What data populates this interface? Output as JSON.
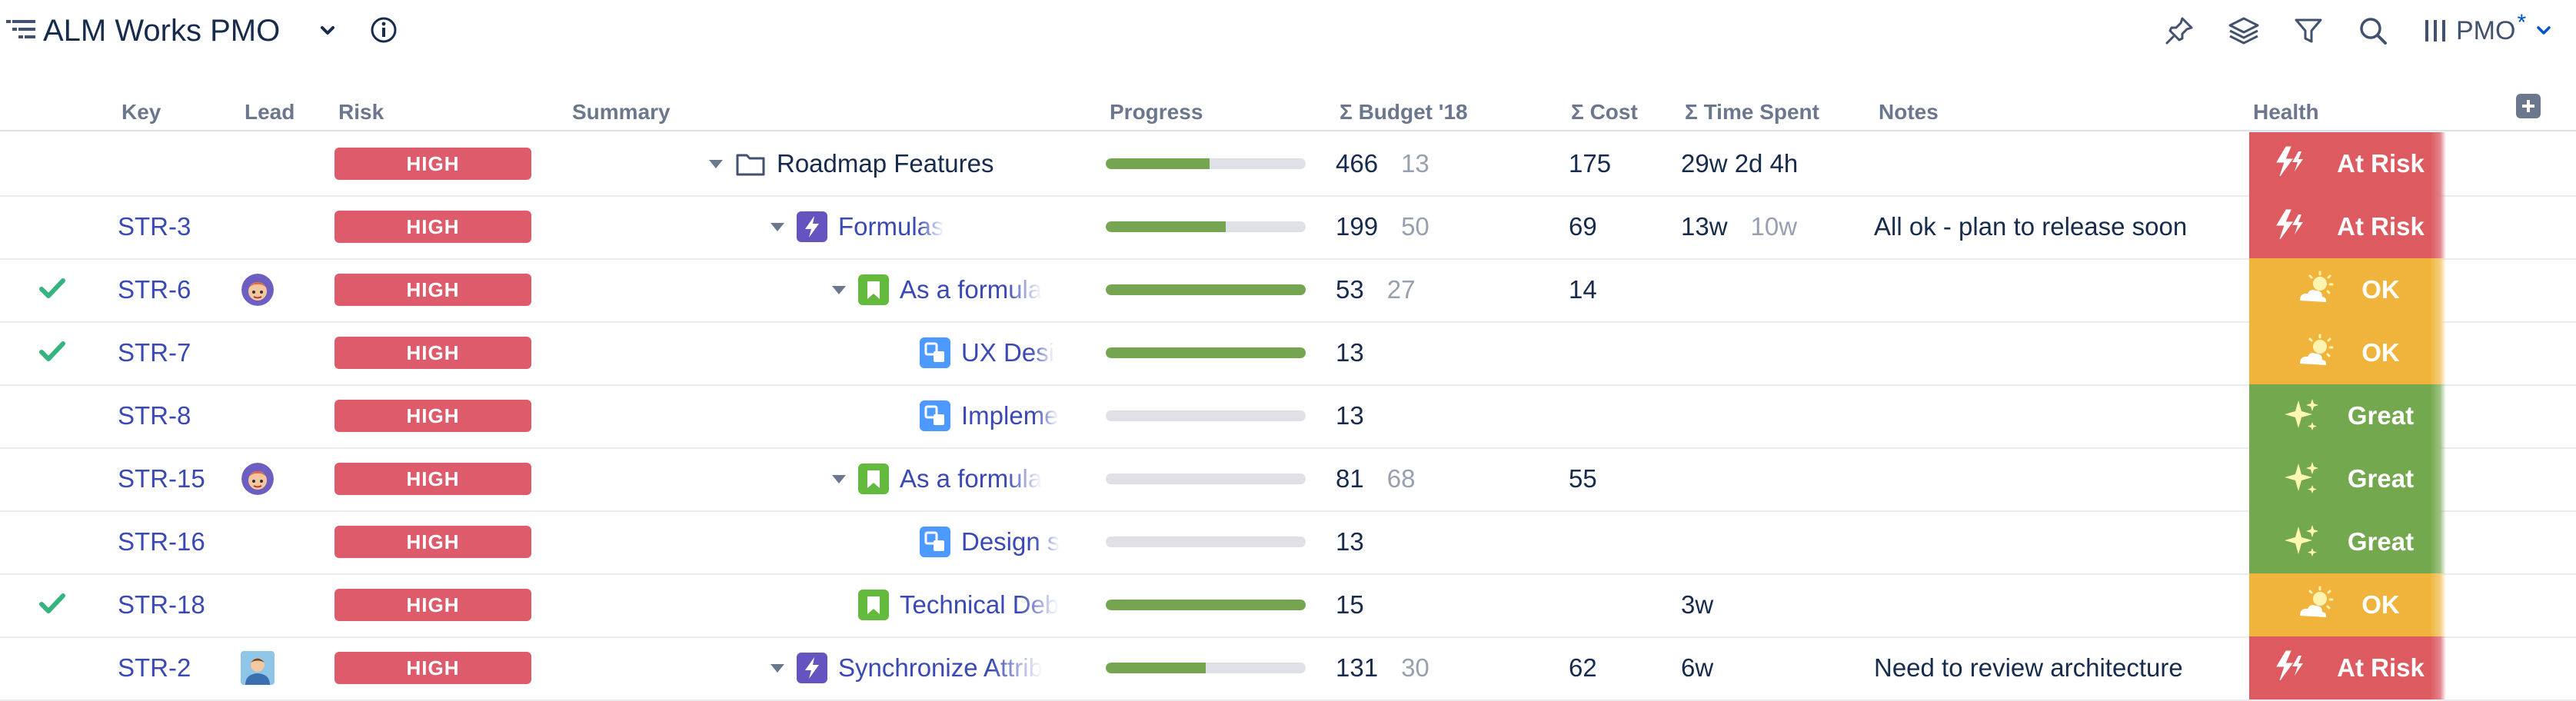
{
  "app": {
    "title": "ALM Works PMO"
  },
  "toolbar": {
    "view_name": "PMO",
    "view_modified_marker": "*"
  },
  "columns": {
    "key": "Key",
    "lead": "Lead",
    "risk": "Risk",
    "summary": "Summary",
    "progress": "Progress",
    "budget": "Σ Budget '18",
    "cost": "Σ Cost",
    "time_spent": "Σ Time Spent",
    "notes": "Notes",
    "health": "Health"
  },
  "colors": {
    "risk_high": "#dd5b6b",
    "progress_fill": "#76a552",
    "link": "#3a49b5",
    "health_at_risk": "#dc5a60",
    "health_ok": "#f0b43c",
    "health_great": "#74a84f",
    "issue_epic": "#6554c0",
    "issue_story": "#63ba3c",
    "issue_subtask": "#4c9aff"
  },
  "rows": [
    {
      "check": false,
      "key": "",
      "lead": "",
      "risk": "HIGH",
      "expanded": true,
      "type": "folder",
      "summary": "Roadmap Features",
      "progress": 0.52,
      "budget": "466",
      "budget_sub": "13",
      "cost": "175",
      "time": "29w 2d 4h",
      "time_sub": "",
      "notes": "",
      "health": "At Risk",
      "health_status": "red"
    },
    {
      "check": false,
      "key": "STR-3",
      "lead": "",
      "risk": "HIGH",
      "expanded": true,
      "type": "epic",
      "summary": "Formulas",
      "progress": 0.6,
      "budget": "199",
      "budget_sub": "50",
      "cost": "69",
      "time": "13w",
      "time_sub": "10w",
      "notes": "All ok - plan to release soon",
      "health": "At Risk",
      "health_status": "red"
    },
    {
      "check": true,
      "key": "STR-6",
      "lead": "avatar-1",
      "risk": "HIGH",
      "expanded": true,
      "type": "story",
      "summary": "As a formula",
      "progress": 1.0,
      "budget": "53",
      "budget_sub": "27",
      "cost": "14",
      "time": "",
      "time_sub": "",
      "notes": "",
      "health": "OK",
      "health_status": "yellow"
    },
    {
      "check": true,
      "key": "STR-7",
      "lead": "",
      "risk": "HIGH",
      "expanded": false,
      "type": "subtask",
      "summary": "UX Desi",
      "progress": 1.0,
      "budget": "13",
      "budget_sub": "",
      "cost": "",
      "time": "",
      "time_sub": "",
      "notes": "",
      "health": "OK",
      "health_status": "yellow"
    },
    {
      "check": false,
      "key": "STR-8",
      "lead": "",
      "risk": "HIGH",
      "expanded": false,
      "type": "subtask",
      "summary": "Impleme",
      "progress": 0.0,
      "budget": "13",
      "budget_sub": "",
      "cost": "",
      "time": "",
      "time_sub": "",
      "notes": "",
      "health": "Great",
      "health_status": "green"
    },
    {
      "check": false,
      "key": "STR-15",
      "lead": "avatar-1",
      "risk": "HIGH",
      "expanded": true,
      "type": "story",
      "summary": "As a formula",
      "progress": 0.0,
      "budget": "81",
      "budget_sub": "68",
      "cost": "55",
      "time": "",
      "time_sub": "",
      "notes": "",
      "health": "Great",
      "health_status": "green"
    },
    {
      "check": false,
      "key": "STR-16",
      "lead": "",
      "risk": "HIGH",
      "expanded": false,
      "type": "subtask",
      "summary": "Design s",
      "progress": 0.0,
      "budget": "13",
      "budget_sub": "",
      "cost": "",
      "time": "",
      "time_sub": "",
      "notes": "",
      "health": "Great",
      "health_status": "green"
    },
    {
      "check": true,
      "key": "STR-18",
      "lead": "",
      "risk": "HIGH",
      "expanded": false,
      "type": "story",
      "summary": "Technical Deb",
      "progress": 1.0,
      "budget": "15",
      "budget_sub": "",
      "cost": "",
      "time": "3w",
      "time_sub": "",
      "notes": "",
      "health": "OK",
      "health_status": "yellow"
    },
    {
      "check": false,
      "key": "STR-2",
      "lead": "avatar-2",
      "risk": "HIGH",
      "expanded": true,
      "type": "epic",
      "summary": "Synchronize Attrib",
      "progress": 0.5,
      "budget": "131",
      "budget_sub": "30",
      "cost": "62",
      "time": "6w",
      "time_sub": "",
      "notes": "Need to review architecture",
      "health": "At Risk",
      "health_status": "red"
    }
  ]
}
